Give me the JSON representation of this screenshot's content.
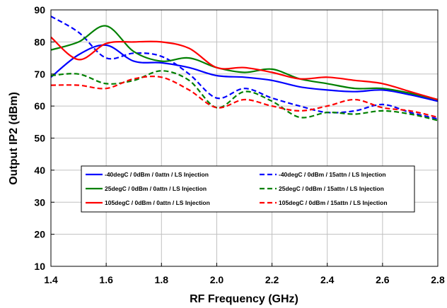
{
  "chart_data": {
    "type": "line",
    "xlabel": "RF Frequency (GHz)",
    "ylabel": "Output IP2 (dBm)",
    "xlim": [
      1.4,
      2.8
    ],
    "ylim": [
      10,
      90
    ],
    "xticks": [
      "1.4",
      "1.6",
      "1.8",
      "2.0",
      "2.2",
      "2.4",
      "2.6",
      "2.8"
    ],
    "yticks": [
      "10",
      "20",
      "30",
      "40",
      "50",
      "60",
      "70",
      "80",
      "90"
    ],
    "grid": true,
    "legend_placement": "inside-bottom-center",
    "series": [
      {
        "name": "-40degC /  0dBm /  0attn /  LS Injection",
        "color": "#0000ff",
        "dash": "solid",
        "x": [
          1.4,
          1.5,
          1.6,
          1.7,
          1.8,
          1.9,
          2.0,
          2.1,
          2.2,
          2.3,
          2.4,
          2.5,
          2.6,
          2.7,
          2.8
        ],
        "y": [
          69.0,
          76.0,
          79.0,
          74.0,
          73.5,
          72.0,
          69.5,
          69.0,
          68.0,
          66.0,
          65.0,
          64.5,
          65.0,
          63.5,
          61.5
        ]
      },
      {
        "name": "-40degC /  0dBm /  15attn /  LS Injection",
        "color": "#0000ff",
        "dash": "dashed",
        "x": [
          1.4,
          1.5,
          1.6,
          1.7,
          1.8,
          1.9,
          2.0,
          2.1,
          2.2,
          2.3,
          2.4,
          2.5,
          2.6,
          2.7,
          2.8
        ],
        "y": [
          88.0,
          83.0,
          75.0,
          76.5,
          75.5,
          70.0,
          62.5,
          65.5,
          62.5,
          60.0,
          58.0,
          58.5,
          60.5,
          58.0,
          56.0
        ]
      },
      {
        "name": "25degC /  0dBm /  0attn /  LS Injection",
        "color": "#008000",
        "dash": "solid",
        "x": [
          1.4,
          1.5,
          1.6,
          1.7,
          1.8,
          1.9,
          2.0,
          2.1,
          2.2,
          2.3,
          2.4,
          2.5,
          2.6,
          2.7,
          2.8
        ],
        "y": [
          77.5,
          80.0,
          85.0,
          77.0,
          74.0,
          75.0,
          72.0,
          70.5,
          71.5,
          68.5,
          67.0,
          65.5,
          65.5,
          64.0,
          62.0
        ]
      },
      {
        "name": "25degC /  0dBm /  15attn /  LS Injection",
        "color": "#008000",
        "dash": "dashed",
        "x": [
          1.4,
          1.5,
          1.6,
          1.7,
          1.8,
          1.9,
          2.0,
          2.1,
          2.2,
          2.3,
          2.4,
          2.5,
          2.6,
          2.7,
          2.8
        ],
        "y": [
          69.5,
          70.0,
          67.0,
          68.0,
          71.0,
          68.0,
          59.5,
          64.5,
          61.5,
          56.5,
          58.0,
          57.5,
          58.5,
          57.5,
          55.5
        ]
      },
      {
        "name": "105degC /  0dBm /  0attn /  LS Injection",
        "color": "#ff0000",
        "dash": "solid",
        "x": [
          1.4,
          1.5,
          1.6,
          1.7,
          1.8,
          1.9,
          2.0,
          2.1,
          2.2,
          2.3,
          2.4,
          2.5,
          2.6,
          2.7,
          2.8
        ],
        "y": [
          81.5,
          74.5,
          79.5,
          80.0,
          80.0,
          78.0,
          72.0,
          72.0,
          70.5,
          68.5,
          69.0,
          68.0,
          67.0,
          64.5,
          62.0
        ]
      },
      {
        "name": "105degC /  0dBm /  15attn /  LS Injection",
        "color": "#ff0000",
        "dash": "dashed",
        "x": [
          1.4,
          1.5,
          1.6,
          1.7,
          1.8,
          1.9,
          2.0,
          2.1,
          2.2,
          2.3,
          2.4,
          2.5,
          2.6,
          2.7,
          2.8
        ],
        "y": [
          66.5,
          66.5,
          65.5,
          68.5,
          69.0,
          65.0,
          59.5,
          62.0,
          60.0,
          58.5,
          60.0,
          62.0,
          59.5,
          58.5,
          56.5
        ]
      }
    ]
  }
}
